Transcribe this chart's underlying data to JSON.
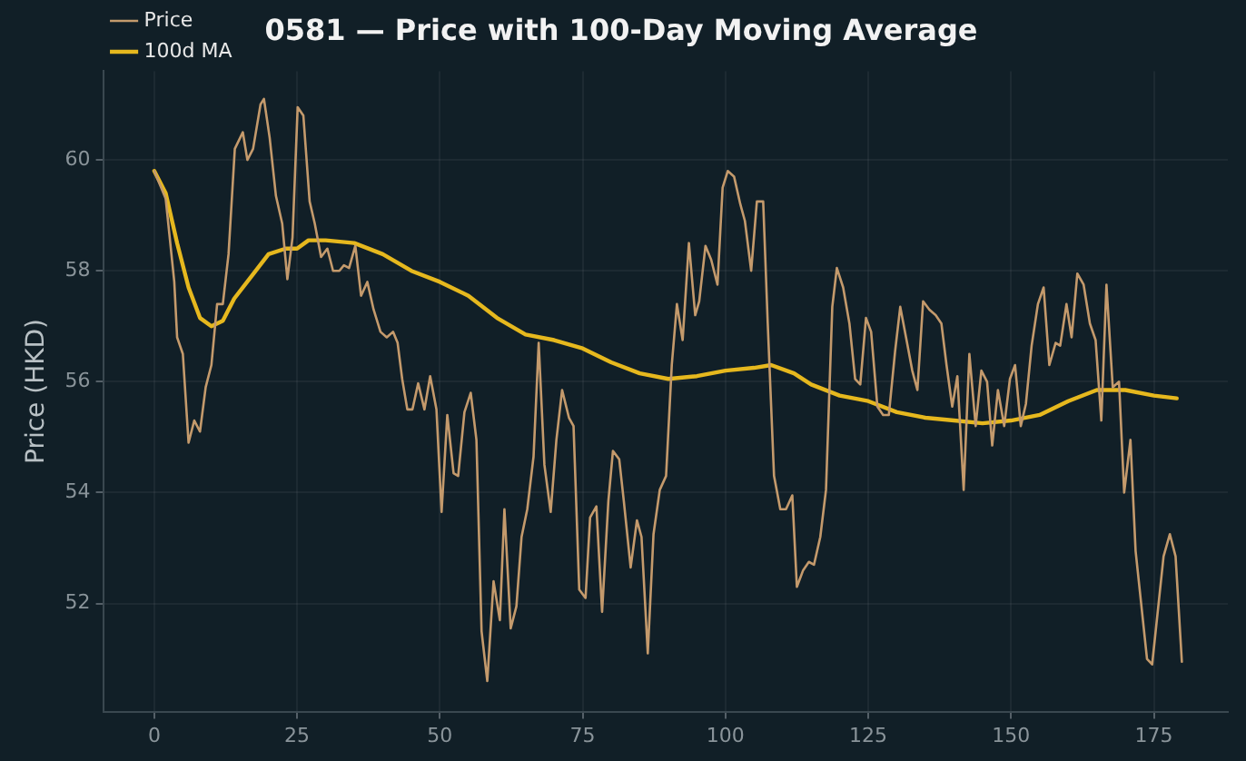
{
  "chart_data": {
    "type": "line",
    "title": "0581 — Price with 100-Day Moving Average",
    "ylabel": "Price (HKD)",
    "xlim": [
      -8.95,
      187.95
    ],
    "ylim": [
      50.05,
      61.6
    ],
    "xticks": [
      0,
      25,
      50,
      75,
      100,
      125,
      150,
      175
    ],
    "yticks": [
      52,
      54,
      56,
      58,
      60
    ],
    "grid": true,
    "legend": "top left",
    "marker": "none",
    "line_style": "solid",
    "series": [
      {
        "name": "Price",
        "color": "#c49a6c",
        "x": [
          0,
          2,
          3.5,
          4,
          5,
          6,
          7,
          8,
          9,
          10,
          11,
          12,
          13,
          14.1,
          15.5,
          16.3,
          17.3,
          18.6,
          19.2,
          20.2,
          21.3,
          22.4,
          23.3,
          24.2,
          25.1,
          26.1,
          27.2,
          28.1,
          29.2,
          30.3,
          31.3,
          32.4,
          33.2,
          34.1,
          35.2,
          36.2,
          37.3,
          38.4,
          39.6,
          40.7,
          41.8,
          42.6,
          43.4,
          44.3,
          45.2,
          46.2,
          47.3,
          48.3,
          49.4,
          50.3,
          51.3,
          52.4,
          53.2,
          54.3,
          55.4,
          56.4,
          57.3,
          58.3,
          59.4,
          60.5,
          61.3,
          62.4,
          63.4,
          64.3,
          65.3,
          66.4,
          67.3,
          68.3,
          69.4,
          70.4,
          71.4,
          72.6,
          73.4,
          74.4,
          75.5,
          76.3,
          77.4,
          78.4,
          79.5,
          80.3,
          81.4,
          82.2,
          83.4,
          84.5,
          85.3,
          86.4,
          87.4,
          88.5,
          89.6,
          90.6,
          91.5,
          92.5,
          93.6,
          94.7,
          95.4,
          96.5,
          97.5,
          98.6,
          99.5,
          100.4,
          101.5,
          102.6,
          103.4,
          104.5,
          105.5,
          106.6,
          107.4,
          108.5,
          109.6,
          110.6,
          111.7,
          112.5,
          113.6,
          114.6,
          115.5,
          116.6,
          117.6,
          118.7,
          119.5,
          120.6,
          121.7,
          122.7,
          123.6,
          124.6,
          125.5,
          126.6,
          127.6,
          128.6,
          129.7,
          130.6,
          131.7,
          132.7,
          133.6,
          134.6,
          135.7,
          136.8,
          137.8,
          138.7,
          139.7,
          140.6,
          141.7,
          142.7,
          143.8,
          144.8,
          145.8,
          146.7,
          147.7,
          148.8,
          149.8,
          150.7,
          151.7,
          152.6,
          153.6,
          154.7,
          155.7,
          156.7,
          157.8,
          158.6,
          159.7,
          160.6,
          161.6,
          162.7,
          163.8,
          164.8,
          165.8,
          166.7,
          167.8,
          168.9,
          169.8,
          170.9,
          171.8,
          173.8,
          174.7,
          176.7,
          177.8,
          178.8,
          179.9
        ],
        "values": [
          59.8,
          59.3,
          57.8,
          56.8,
          56.5,
          54.9,
          55.3,
          55.1,
          55.9,
          56.3,
          57.4,
          57.4,
          58.3,
          60.2,
          60.5,
          60.0,
          60.2,
          61.0,
          61.1,
          60.4,
          59.35,
          58.85,
          57.85,
          58.6,
          60.95,
          60.8,
          59.25,
          58.85,
          58.25,
          58.4,
          58.0,
          58.0,
          58.1,
          58.05,
          58.45,
          57.55,
          57.8,
          57.3,
          56.9,
          56.8,
          56.9,
          56.7,
          56.05,
          55.5,
          55.5,
          55.97,
          55.5,
          56.1,
          55.5,
          53.65,
          55.4,
          54.35,
          54.3,
          55.45,
          55.8,
          54.95,
          51.5,
          50.6,
          52.4,
          51.7,
          53.7,
          51.55,
          51.95,
          53.2,
          53.7,
          54.65,
          56.7,
          54.5,
          53.65,
          54.95,
          55.85,
          55.35,
          55.2,
          52.25,
          52.1,
          53.55,
          53.75,
          51.85,
          53.85,
          54.75,
          54.6,
          53.85,
          52.65,
          53.5,
          53.2,
          51.1,
          53.25,
          54.05,
          54.3,
          56.3,
          57.4,
          56.75,
          58.5,
          57.2,
          57.45,
          58.45,
          58.2,
          57.75,
          59.5,
          59.8,
          59.7,
          59.2,
          58.9,
          58.0,
          59.25,
          59.25,
          57.05,
          54.3,
          53.7,
          53.7,
          53.95,
          52.3,
          52.6,
          52.75,
          52.7,
          53.2,
          54.05,
          57.35,
          58.05,
          57.7,
          57.05,
          56.05,
          55.95,
          57.15,
          56.9,
          55.55,
          55.4,
          55.4,
          56.55,
          57.35,
          56.75,
          56.2,
          55.85,
          57.45,
          57.3,
          57.2,
          57.05,
          56.3,
          55.55,
          56.1,
          54.05,
          56.5,
          55.2,
          56.2,
          56.0,
          54.85,
          55.85,
          55.2,
          56.05,
          56.3,
          55.2,
          55.6,
          56.65,
          57.4,
          57.7,
          56.3,
          56.7,
          56.65,
          57.4,
          56.8,
          57.95,
          57.75,
          57.05,
          56.75,
          55.3,
          57.75,
          55.9,
          56.0,
          54.0,
          54.95,
          52.95,
          51.0,
          50.9,
          52.85,
          53.25,
          52.85,
          50.95
        ]
      },
      {
        "name": "100d MA",
        "color": "#e6b81e",
        "x": [
          0,
          2,
          4,
          6,
          8,
          10,
          12,
          14,
          17,
          20,
          23,
          25,
          27,
          30,
          35,
          40,
          45,
          50,
          55,
          60,
          65,
          70,
          75,
          80,
          85,
          90,
          95,
          100,
          105,
          108,
          112,
          115,
          120,
          125,
          130,
          135,
          140,
          145,
          150,
          155,
          160,
          165,
          170,
          175,
          179
        ],
        "values": [
          59.8,
          59.4,
          58.5,
          57.7,
          57.15,
          57.0,
          57.1,
          57.5,
          57.9,
          58.3,
          58.4,
          58.4,
          58.55,
          58.55,
          58.5,
          58.3,
          58.0,
          57.8,
          57.55,
          57.15,
          56.85,
          56.75,
          56.6,
          56.35,
          56.15,
          56.05,
          56.1,
          56.2,
          56.25,
          56.3,
          56.15,
          55.95,
          55.75,
          55.65,
          55.45,
          55.35,
          55.3,
          55.25,
          55.3,
          55.4,
          55.65,
          55.85,
          55.85,
          55.75,
          55.7
        ]
      }
    ]
  }
}
